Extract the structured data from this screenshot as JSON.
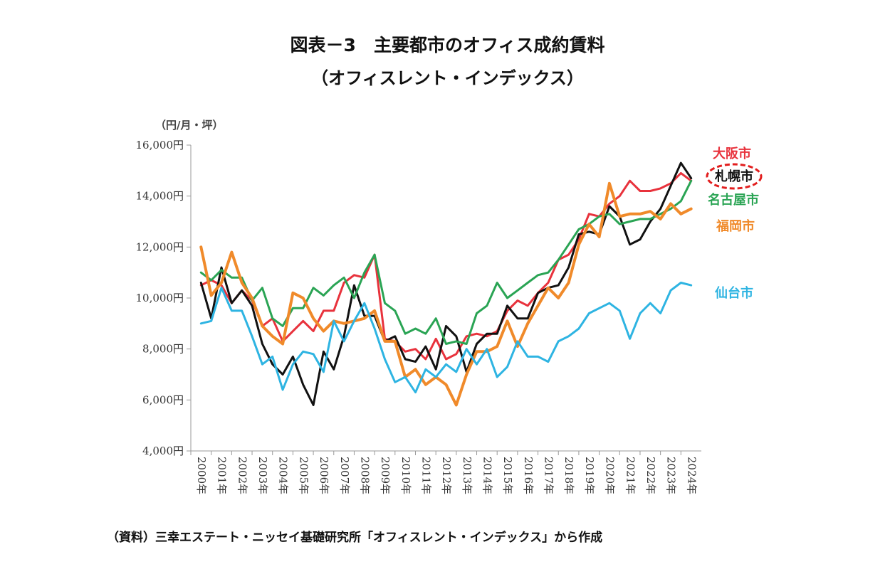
{
  "title": "図表－3　主要都市のオフィス成約賃料",
  "subtitle": "（オフィスレント・インデックス）",
  "source": "（資料）三幸エステート・ニッセイ基礎研究所「オフィスレント・インデックス」から作成",
  "chart_data": {
    "type": "line",
    "ylabel": "（円/月・坪）",
    "ylim": [
      4000,
      16000
    ],
    "yticks": [
      4000,
      6000,
      8000,
      10000,
      12000,
      14000,
      16000
    ],
    "ytick_labels": [
      "4,000円",
      "6,000円",
      "8,000円",
      "10,000円",
      "12,000円",
      "14,000円",
      "16,000円"
    ],
    "xlim": [
      2000,
      2025
    ],
    "xticks": [
      2000,
      2001,
      2002,
      2003,
      2004,
      2005,
      2006,
      2007,
      2008,
      2009,
      2010,
      2011,
      2012,
      2013,
      2014,
      2015,
      2016,
      2017,
      2018,
      2019,
      2020,
      2021,
      2022,
      2023,
      2024
    ],
    "xtick_labels": [
      "2000年",
      "2001年",
      "2002年",
      "2003年",
      "2004年",
      "2005年",
      "2006年",
      "2007年",
      "2008年",
      "2009年",
      "2010年",
      "2011年",
      "2012年",
      "2013年",
      "2014年",
      "2015年",
      "2016年",
      "2017年",
      "2018年",
      "2019年",
      "2020年",
      "2021年",
      "2022年",
      "2023年",
      "2024年"
    ],
    "x": [
      2000.5,
      2001.0,
      2001.5,
      2002.0,
      2002.5,
      2003.0,
      2003.5,
      2004.0,
      2004.5,
      2005.0,
      2005.5,
      2006.0,
      2006.5,
      2007.0,
      2007.5,
      2008.0,
      2008.5,
      2009.0,
      2009.5,
      2010.0,
      2010.5,
      2011.0,
      2011.5,
      2012.0,
      2012.5,
      2013.0,
      2013.5,
      2014.0,
      2014.5,
      2015.0,
      2015.5,
      2016.0,
      2016.5,
      2017.0,
      2017.5,
      2018.0,
      2018.5,
      2019.0,
      2019.5,
      2020.0,
      2020.5,
      2021.0,
      2021.5,
      2022.0,
      2022.5,
      2023.0,
      2023.5,
      2024.0,
      2024.5
    ],
    "legend_placement": "right-end",
    "grid": false,
    "series": [
      {
        "name": "大阪市",
        "color": "#e8323c",
        "values": [
          10500,
          10700,
          10500,
          9800,
          10300,
          9900,
          8900,
          9200,
          8300,
          8700,
          9100,
          8700,
          9500,
          9500,
          10600,
          10900,
          10800,
          11700,
          8400,
          8300,
          7900,
          8000,
          7600,
          8400,
          7600,
          7800,
          8500,
          8600,
          8500,
          8700,
          9500,
          9900,
          9700,
          10200,
          10600,
          11500,
          11700,
          12300,
          13300,
          13200,
          13700,
          14000,
          14600,
          14200,
          14200,
          14300,
          14500,
          14900,
          14600
        ]
      },
      {
        "name": "札幌市",
        "color": "#111111",
        "values": [
          10600,
          9200,
          11200,
          9800,
          10300,
          9700,
          8200,
          7400,
          7000,
          7700,
          6600,
          5800,
          7900,
          7200,
          8500,
          10500,
          9300,
          9300,
          8300,
          8500,
          7600,
          7500,
          8100,
          7200,
          8900,
          8500,
          7100,
          8200,
          8600,
          8600,
          9700,
          9200,
          9200,
          10200,
          10400,
          10500,
          11200,
          12500,
          12600,
          12500,
          13600,
          13200,
          12100,
          12300,
          13000,
          13500,
          14400,
          15300,
          14700
        ]
      },
      {
        "name": "名古屋市",
        "color": "#2aa454",
        "values": [
          11000,
          10700,
          11100,
          10800,
          10800,
          9900,
          10400,
          9200,
          8900,
          9600,
          9600,
          10400,
          10100,
          10500,
          10800,
          10000,
          11000,
          11700,
          9800,
          9500,
          8600,
          8800,
          8600,
          9200,
          8200,
          8300,
          8200,
          9400,
          9700,
          10600,
          10000,
          10300,
          10600,
          10900,
          11000,
          11500,
          12100,
          12700,
          12900,
          13200,
          13300,
          12900,
          13000,
          13100,
          13100,
          13300,
          13500,
          13800,
          14600
        ]
      },
      {
        "name": "福岡市",
        "color": "#f08a2a",
        "values": [
          12000,
          10100,
          10600,
          11800,
          10600,
          10000,
          8900,
          8500,
          8200,
          10200,
          10000,
          9200,
          8700,
          9100,
          9000,
          9100,
          9200,
          9500,
          8300,
          8300,
          6900,
          7200,
          6600,
          6900,
          6600,
          5800,
          7000,
          7900,
          7900,
          8100,
          9100,
          8100,
          9000,
          9700,
          10400,
          10000,
          10600,
          12100,
          12900,
          12400,
          14500,
          13200,
          13300,
          13300,
          13400,
          13100,
          13700,
          13300,
          13500
        ]
      },
      {
        "name": "仙台市",
        "color": "#2eb4e2",
        "values": [
          9000,
          9100,
          10400,
          9500,
          9500,
          8500,
          7400,
          7700,
          6400,
          7400,
          7900,
          7800,
          7100,
          9100,
          8300,
          9100,
          9800,
          8800,
          7600,
          6700,
          6900,
          6300,
          7200,
          6900,
          7400,
          7100,
          8000,
          7400,
          8000,
          6900,
          7300,
          8300,
          7700,
          7700,
          7500,
          8300,
          8500,
          8800,
          9400,
          9600,
          9800,
          9500,
          8400,
          9400,
          9800,
          9400,
          10300,
          10600,
          10500
        ]
      }
    ],
    "highlighted_series": "札幌市"
  }
}
